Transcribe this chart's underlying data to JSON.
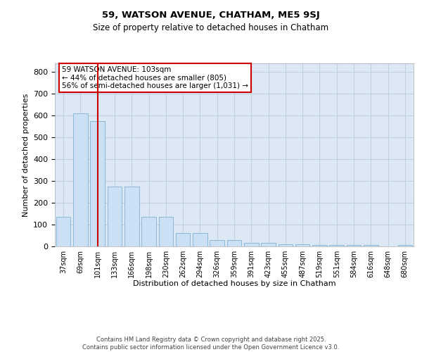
{
  "title_line1": "59, WATSON AVENUE, CHATHAM, ME5 9SJ",
  "title_line2": "Size of property relative to detached houses in Chatham",
  "xlabel": "Distribution of detached houses by size in Chatham",
  "ylabel": "Number of detached properties",
  "categories": [
    "37sqm",
    "69sqm",
    "101sqm",
    "133sqm",
    "166sqm",
    "198sqm",
    "230sqm",
    "262sqm",
    "294sqm",
    "326sqm",
    "359sqm",
    "391sqm",
    "423sqm",
    "455sqm",
    "487sqm",
    "519sqm",
    "551sqm",
    "584sqm",
    "616sqm",
    "648sqm",
    "680sqm"
  ],
  "values": [
    135,
    610,
    575,
    275,
    275,
    135,
    135,
    60,
    60,
    28,
    28,
    15,
    15,
    10,
    10,
    8,
    8,
    5,
    5,
    0,
    6
  ],
  "bar_color": "#cce0f5",
  "bar_edge_color": "#8ab8d8",
  "vline_color": "#cc0000",
  "vline_x": 2,
  "annotation_text": "59 WATSON AVENUE: 103sqm\n← 44% of detached houses are smaller (805)\n56% of semi-detached houses are larger (1,031) →",
  "annotation_box_facecolor": "#ffffff",
  "annotation_box_edgecolor": "#cc0000",
  "grid_color": "#c0d0e0",
  "bg_color": "#dce8f4",
  "footer": "Contains HM Land Registry data © Crown copyright and database right 2025.\nContains public sector information licensed under the Open Government Licence v3.0.",
  "ylim": [
    0,
    840
  ],
  "yticks": [
    0,
    100,
    200,
    300,
    400,
    500,
    600,
    700,
    800
  ],
  "title1_fontsize": 9.5,
  "title2_fontsize": 8.5,
  "tick_fontsize": 7,
  "ylabel_fontsize": 8,
  "xlabel_fontsize": 8,
  "footer_fontsize": 6
}
